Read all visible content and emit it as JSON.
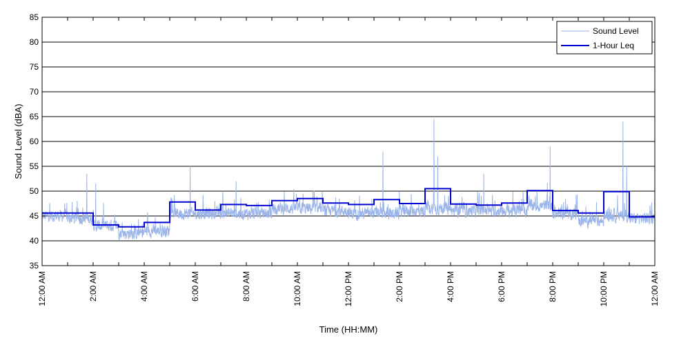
{
  "chart_data": {
    "type": "line",
    "xlabel": "Time (HH:MM)",
    "ylabel": "Sound Level (dBA)",
    "ylim": [
      35,
      85
    ],
    "yticks": [
      35,
      40,
      45,
      50,
      55,
      60,
      65,
      70,
      75,
      80,
      85
    ],
    "xlim_hours": [
      0,
      24
    ],
    "xtick_labels": [
      "12:00 AM",
      "2:00 AM",
      "4:00 AM",
      "6:00 AM",
      "8:00 AM",
      "10:00 AM",
      "12:00 PM",
      "2:00 PM",
      "4:00 PM",
      "6:00 PM",
      "8:00 PM",
      "10:00 PM",
      "12:00 AM"
    ],
    "grid": "horizontal",
    "legend_position": "top-right",
    "series": [
      {
        "name": "Sound Level",
        "color": "#9bb5ea",
        "baseline_by_hour": [
          45,
          44.5,
          43,
          41.5,
          42,
          45.5,
          45.5,
          45.5,
          45.5,
          46.5,
          46.5,
          46,
          45.5,
          45.5,
          46,
          46.5,
          46,
          46,
          46,
          47,
          45.5,
          44,
          45,
          44.5
        ],
        "spikes": [
          {
            "hour": 1.75,
            "value": 53.5
          },
          {
            "hour": 2.1,
            "value": 51.5
          },
          {
            "hour": 5.8,
            "value": 55
          },
          {
            "hour": 7.6,
            "value": 52
          },
          {
            "hour": 13.35,
            "value": 58
          },
          {
            "hour": 15.35,
            "value": 64.5
          },
          {
            "hour": 15.5,
            "value": 57
          },
          {
            "hour": 17.3,
            "value": 53.5
          },
          {
            "hour": 19.9,
            "value": 59
          },
          {
            "hour": 22.75,
            "value": 64
          },
          {
            "hour": 22.9,
            "value": 55
          }
        ]
      },
      {
        "name": "1-Hour Leq",
        "color": "#0000d0",
        "hours": [
          0,
          1,
          2,
          3,
          4,
          5,
          6,
          7,
          8,
          9,
          10,
          11,
          12,
          13,
          14,
          15,
          16,
          17,
          18,
          19,
          20,
          21,
          22,
          23
        ],
        "values": [
          45.6,
          45.6,
          43.2,
          42.8,
          43.7,
          47.8,
          46.2,
          47.3,
          47.1,
          48.1,
          48.5,
          47.6,
          47.3,
          48.3,
          47.5,
          50.5,
          47.4,
          47.2,
          47.6,
          50.1,
          46.1,
          45.6,
          49.9,
          44.8
        ]
      }
    ]
  }
}
